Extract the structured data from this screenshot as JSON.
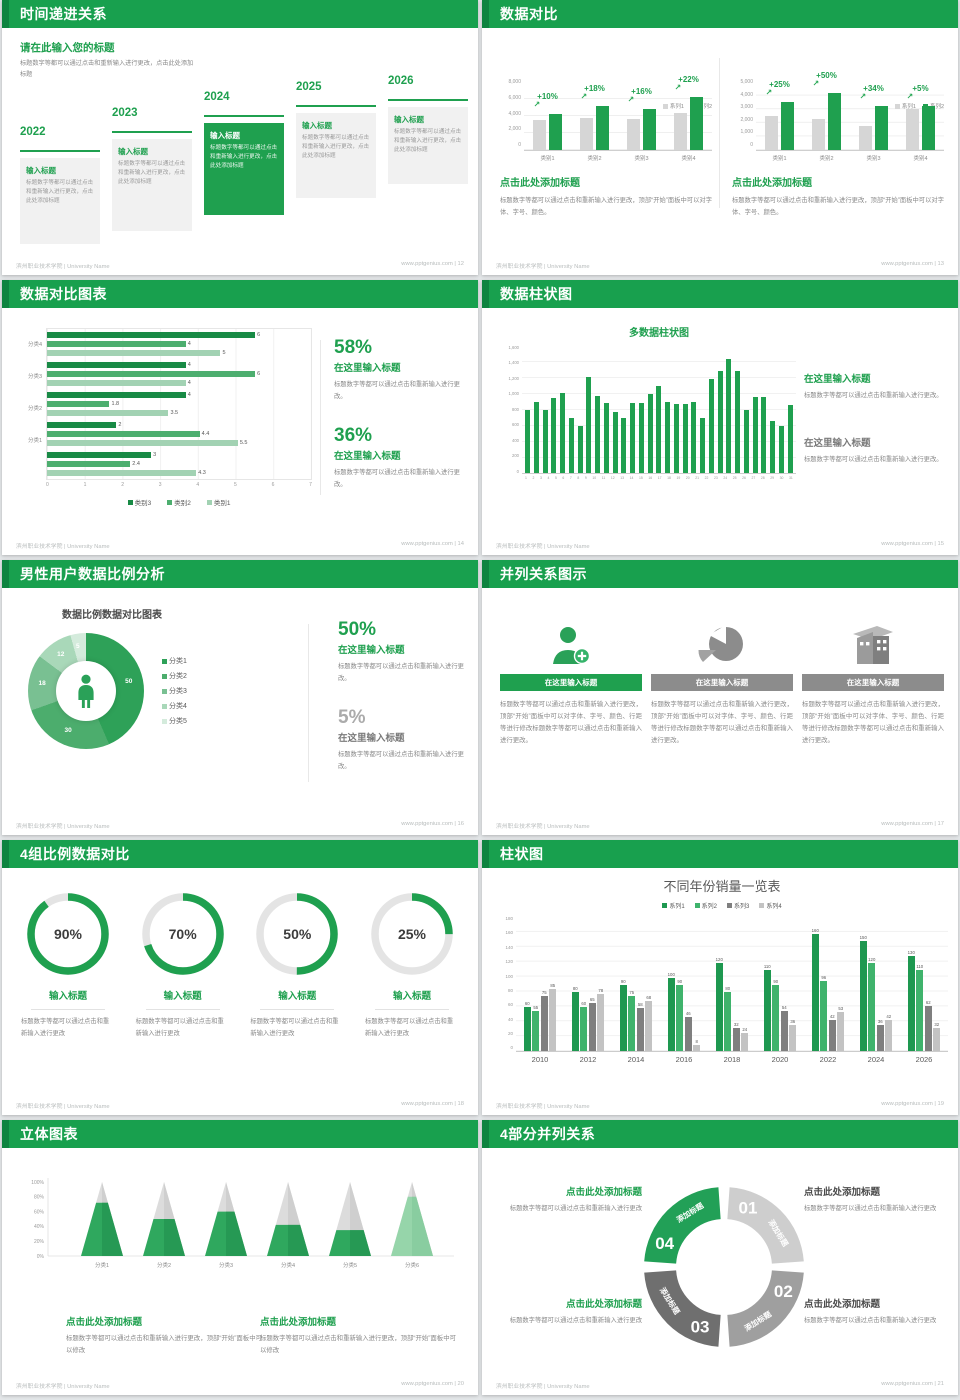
{
  "colors": {
    "theme_green": "#1FA04F",
    "header_green": "#18A04E",
    "header_accent": "#0E8440",
    "ring_track": "#E4E4E4",
    "gray_series": "#D6D6D6"
  },
  "footer": {
    "left": "滨州职业技术学院 | University Name",
    "site": "www.pptgenius.com"
  },
  "slides": [
    {
      "title": "时间递进关系",
      "footer_right": "www.pptgenius.com | 12",
      "intro_title": "请在此输入您的标题",
      "intro_body": "标题数字等都可以通过点击和重新输入进行更改，点击此处添加标题",
      "item_title": "输入标题",
      "item_body": "标题数字等都可以通过点击和重新输入进行更改，点击此处添加标题",
      "years": [
        "2022",
        "2023",
        "2024",
        "2025",
        "2026"
      ],
      "highlight_index": 2
    },
    {
      "title": "数据对比",
      "footer_right": "www.pptgenius.com | 13",
      "heading": "点击此处添加标题",
      "body": "标题数字等都可以通过点击和重新输入进行更改，顶部“开始”面板中可以对字体、字号、颜色。"
    },
    {
      "title": "数据对比图表",
      "footer_right": "www.pptgenius.com | 14",
      "stats": [
        {
          "value": "58%",
          "label": "在这里输入标题",
          "body": "标题数字等都可以通过点击和重新输入进行更改。"
        },
        {
          "value": "36%",
          "label": "在这里输入标题",
          "body": "标题数字等都可以通过点击和重新输入进行更改。"
        }
      ]
    },
    {
      "title": "数据柱状图",
      "footer_right": "www.pptgenius.com | 15",
      "stats": [
        {
          "label": "在这里输入标题",
          "body": "标题数字等都可以通过点击和重新输入进行更改。"
        },
        {
          "label": "在这里输入标题",
          "body": "标题数字等都可以通过点击和重新输入进行更改。"
        }
      ]
    },
    {
      "title": "男性用户数据比例分析",
      "footer_right": "www.pptgenius.com | 16",
      "stats": [
        {
          "value": "50%",
          "label": "在这里输入标题",
          "body": "标题数字等都可以通过点击和重新输入进行更改。"
        },
        {
          "value": "5%",
          "label": "在这里输入标题",
          "body": "标题数字等都可以通过点击和重新输入进行更改。"
        }
      ]
    },
    {
      "title": "并列关系图示",
      "footer_right": "www.pptgenius.com | 17",
      "card_header": "在这里输入标题",
      "card_body": "标题数字等都可以通过点击和重新输入进行更改，顶部“开始”面板中可以对字体、字号、颜色、行距等进行修改标题数字等都可以通过点击和重新输入进行更改。"
    },
    {
      "title": "4组比例数据对比",
      "footer_right": "www.pptgenius.com | 18",
      "rings": [
        {
          "value": "90%",
          "title": "输入标题",
          "body": "标题数字等都可以通过点击和重新输入进行更改"
        },
        {
          "value": "70%",
          "title": "输入标题",
          "body": "标题数字等都可以通过点击和重新输入进行更改"
        },
        {
          "value": "50%",
          "title": "输入标题",
          "body": "标题数字等都可以通过点击和重新输入进行更改"
        },
        {
          "value": "25%",
          "title": "输入标题",
          "body": "标题数字等都可以通过点击和重新输入进行更改"
        }
      ]
    },
    {
      "title": "柱状图",
      "footer_right": "www.pptgenius.com | 19"
    },
    {
      "title": "立体图表",
      "footer_right": "www.pptgenius.com | 20",
      "blocks": [
        {
          "heading": "点击此处添加标题",
          "body": "标题数字等都可以通过点击和重新输入进行更改，顶部“开始”面板中可以修改"
        },
        {
          "heading": "点击此处添加标题",
          "body": "标题数字等都可以通过点击和重新输入进行更改，顶部“开始”面板中可以修改"
        }
      ]
    },
    {
      "title": "4部分并列关系",
      "footer_right": "www.pptgenius.com | 21",
      "wheel": {
        "colors": [
          "#CECECE",
          "#9F9F9F",
          "#6F6F6F",
          "#22A057"
        ],
        "segments": [
          {
            "num": "01",
            "label": "添加标题"
          },
          {
            "num": "02",
            "label": "添加标题"
          },
          {
            "num": "03",
            "label": "添加标题"
          },
          {
            "num": "04",
            "label": "添加标题"
          }
        ]
      },
      "blocks": [
        {
          "heading": "点击此处添加标题",
          "body": "标题数字等都可以通过点击和重新输入进行更改"
        },
        {
          "heading": "点击此处添加标题",
          "body": "标题数字等都可以通过点击和重新输入进行更改"
        },
        {
          "heading": "点击此处添加标题",
          "body": "标题数字等都可以通过点击和重新输入进行更改"
        },
        {
          "heading": "点击此处添加标题",
          "body": "标题数字等都可以通过点击和重新输入进行更改"
        }
      ]
    }
  ],
  "chart_data": [
    {
      "id": "compare-bars-left",
      "type": "bar",
      "categories": [
        "类别1",
        "类别2",
        "类别3",
        "类别4"
      ],
      "series": [
        {
          "name": "系列1",
          "color": "#D6D6D6",
          "values": [
            3500,
            3800,
            3700,
            4300
          ]
        },
        {
          "name": "系列2",
          "color": "#1FA04F",
          "values": [
            4200,
            5200,
            4800,
            6200
          ]
        }
      ],
      "deltas": [
        "+10%",
        "+18%",
        "+16%",
        "+22%"
      ],
      "ymax": 8000,
      "yticks": [
        "8,000",
        "6,000",
        "4,000",
        "2,000",
        "0"
      ]
    },
    {
      "id": "compare-bars-right",
      "type": "bar",
      "categories": [
        "类别1",
        "类别2",
        "类别3",
        "类别4"
      ],
      "series": [
        {
          "name": "系列1",
          "color": "#D6D6D6",
          "values": [
            2500,
            2300,
            1800,
            3000
          ]
        },
        {
          "name": "系列2",
          "color": "#1FA04F",
          "values": [
            3500,
            4200,
            3200,
            3200
          ]
        }
      ],
      "deltas": [
        "+25%",
        "+50%",
        "+34%",
        "+5%"
      ],
      "ymax": 5000,
      "yticks": [
        "5,000",
        "4,000",
        "3,000",
        "2,000",
        "1,000",
        "0"
      ]
    },
    {
      "id": "horizontal-grouped-bars",
      "type": "bar",
      "orientation": "horizontal",
      "groups": [
        {
          "label": "分类4",
          "values": [
            6,
            4,
            5
          ]
        },
        {
          "label": "分类3",
          "values": [
            4,
            6,
            4
          ]
        },
        {
          "label": "分类2",
          "values": [
            4,
            1.8,
            3.5
          ]
        },
        {
          "label": "分类1",
          "values": [
            2,
            4.4,
            5.5
          ]
        },
        {
          "label": "",
          "values": [
            3,
            2.4,
            4.3
          ]
        }
      ],
      "series_legend": [
        "类别3",
        "类别2",
        "类别1"
      ],
      "colors": [
        "#188A45",
        "#4DAE6F",
        "#A2D2B3"
      ],
      "xmax": 7,
      "xticks": [
        "0",
        "1",
        "2",
        "3",
        "4",
        "5",
        "6",
        "7"
      ]
    },
    {
      "id": "multi-column",
      "type": "bar",
      "title": "多数据柱状图",
      "color": "#1FA04F",
      "values": [
        800,
        900,
        800,
        950,
        1020,
        700,
        600,
        1220,
        980,
        890,
        780,
        700,
        890,
        890,
        1000,
        1100,
        900,
        880,
        880,
        900,
        700,
        1200,
        1300,
        1450,
        1300,
        800,
        960,
        970,
        660,
        600,
        870
      ],
      "ymax": 1600,
      "yticks": [
        "1,600",
        "1,400",
        "1,200",
        "1,000",
        "800",
        "600",
        "400",
        "200",
        "0"
      ]
    },
    {
      "id": "male-ratio-donut",
      "type": "pie",
      "title": "数据比例数据对比图表",
      "values": [
        50,
        30,
        18,
        12,
        5
      ],
      "labels": [
        "50",
        "30",
        "18",
        "12",
        "5"
      ],
      "legend": [
        "分类1",
        "分类2",
        "分类3",
        "分类4",
        "分类5"
      ],
      "colors": [
        "#2EA158",
        "#4CAD6D",
        "#79C092",
        "#A9D8B9",
        "#D4EBDC"
      ]
    },
    {
      "id": "progress-rings",
      "type": "pie",
      "style": "progress-rings",
      "values": [
        90,
        70,
        50,
        25
      ],
      "color": "#1FA04F",
      "track": "#E4E4E4"
    },
    {
      "id": "yearly-sales",
      "type": "bar",
      "title": "不同年份销量一览表",
      "categories": [
        "2010",
        "2012",
        "2014",
        "2016",
        "2018",
        "2020",
        "2022",
        "2024",
        "2026"
      ],
      "series": [
        {
          "name": "系列1",
          "color": "#1E9850",
          "values": [
            60,
            80,
            90,
            100,
            120,
            110,
            160,
            150,
            130
          ]
        },
        {
          "name": "系列2",
          "color": "#3FB36C",
          "values": [
            55,
            60,
            75,
            90,
            80,
            90,
            96,
            120,
            110
          ]
        },
        {
          "name": "系列3",
          "color": "#7F7F7F",
          "values": [
            75,
            65,
            58,
            46,
            32,
            54,
            42,
            36,
            62
          ]
        },
        {
          "name": "系列4",
          "color": "#C3C3C3",
          "values": [
            85,
            78,
            68,
            8,
            24,
            36,
            53,
            42,
            32
          ]
        }
      ],
      "ymax": 180,
      "ytick_step": 20
    },
    {
      "id": "cone-chart",
      "type": "bar",
      "style": "cone-3d",
      "categories": [
        "分类1",
        "分类2",
        "分类3",
        "分类4",
        "分类5",
        "分类6"
      ],
      "values_percent": [
        72,
        50,
        60,
        42,
        35,
        80
      ],
      "cone_colors": [
        "#2FA85E",
        "#2FA85E",
        "#2FA85E",
        "#2FA85E",
        "#2FA85E",
        "#96D5AA"
      ],
      "cone_colors_dark": [
        "#1F8C4C",
        "#1F8C4C",
        "#1F8C4C",
        "#1F8C4C",
        "#1F8C4C",
        "#7FC697"
      ],
      "yticks": [
        "100%",
        "80%",
        "60%",
        "40%",
        "20%",
        "0%"
      ]
    }
  ]
}
